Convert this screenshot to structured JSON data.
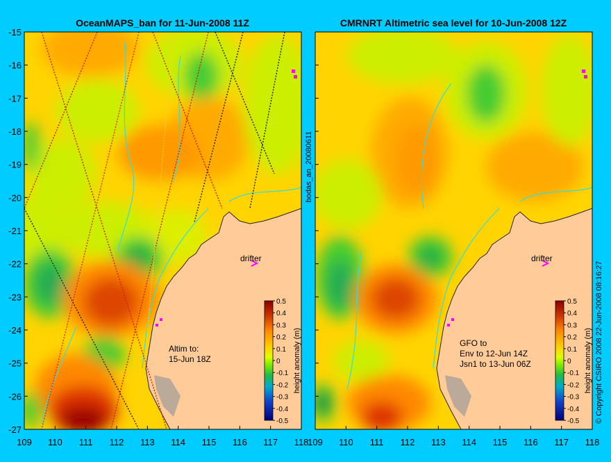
{
  "panels": [
    {
      "title": "OceanMAPS_ban for 11-Jun-2008 11Z",
      "annotation_lines": [
        "Altim to:",
        "15-Jun 18Z"
      ],
      "drifter_label": "drifter"
    },
    {
      "title": "CMRNRT Altimetric sea level  for 10-Jun-2008 12Z",
      "annotation_lines": [
        "GFO to",
        "Env to 12-Jun 14Z",
        "Jsn1 to 13-Jun 06Z"
      ],
      "drifter_label": "drifter"
    }
  ],
  "axes": {
    "x_ticks": [
      "109",
      "110",
      "111",
      "112",
      "113",
      "114",
      "115",
      "116",
      "117",
      "118"
    ],
    "y_ticks": [
      "-15",
      "-16",
      "-17",
      "-18",
      "-19",
      "-20",
      "-21",
      "-22",
      "-23",
      "-24",
      "-25",
      "-26",
      "-27"
    ]
  },
  "colorbar": {
    "label": "height anomaly (m)",
    "ticks": [
      "0.5",
      "0.4",
      "0.3",
      "0.2",
      "0.1",
      "0",
      "-0.1",
      "-0.2",
      "-0.3",
      "-0.4",
      "-0.5"
    ]
  },
  "side_text": {
    "left_panel2": "bodas_an_20080611",
    "right": "© Copyright CSIRO 2008   22-Jun-2008 08:16:27"
  },
  "colors": {
    "background": "#00ccff",
    "land": "#ffcc99",
    "contour": "#33dddd",
    "drifter": "#ff00ff"
  }
}
